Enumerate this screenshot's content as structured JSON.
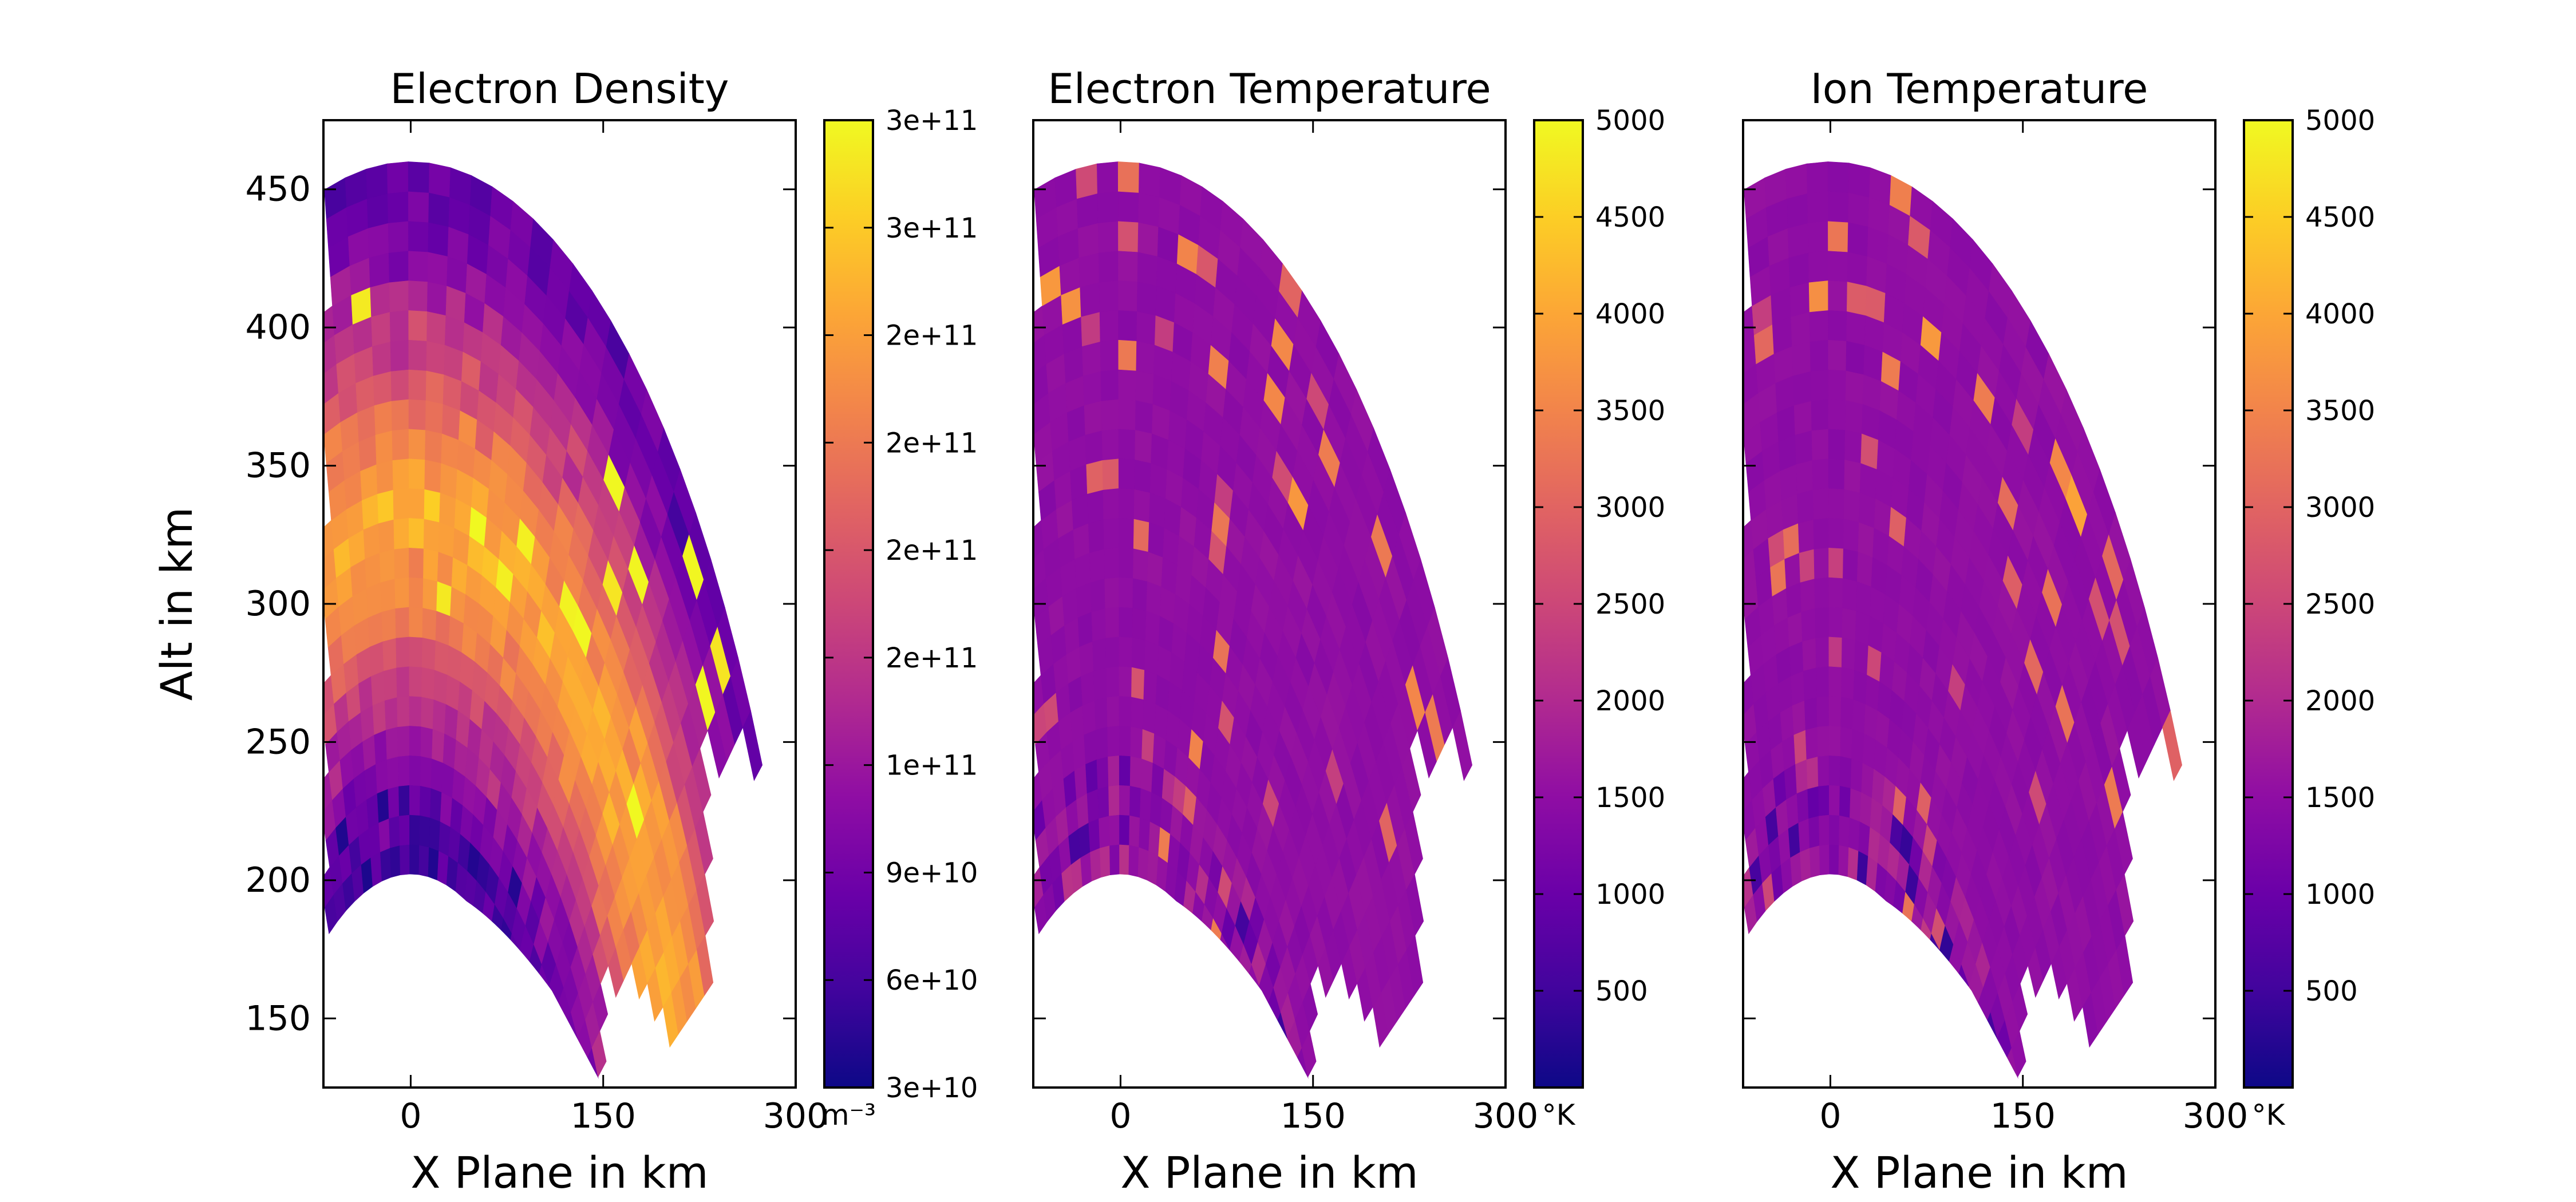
{
  "chart_data": [
    {
      "type": "heatmap",
      "title": "Electron Density",
      "xlabel": "X Plane in km",
      "ylabel": "Alt in km",
      "xlim": [
        -68,
        300
      ],
      "ylim": [
        125,
        475
      ],
      "x_ticks": [
        "0",
        "150",
        "300"
      ],
      "y_ticks": [
        "150",
        "200",
        "250",
        "300",
        "350",
        "400",
        "450"
      ],
      "colormap": "plasma",
      "colorbar": {
        "ticks": [
          "3e+11",
          "3e+11",
          "2e+11",
          "2e+11",
          "2e+11",
          "2e+11",
          "1e+11",
          "9e+10",
          "6e+10",
          "3e+10"
        ],
        "unit": "m⁻³",
        "range": [
          30000000000.0,
          300000000000.0
        ]
      },
      "region": {
        "inner_alt_km": 190,
        "outer_alt_km": 460,
        "lower_left_alt_km": 175,
        "lower_right_alt_km": 258
      },
      "profile": "Low values (~5e10) below ~230 km rising to ~2.5e11 around 300–360 km, decreasing to ~1.5e11 near 450 km, with scattered bright cells near 3e11"
    },
    {
      "type": "heatmap",
      "title": "Electron Temperature",
      "xlabel": "X Plane in km",
      "ylabel": "",
      "xlim": [
        -68,
        300
      ],
      "ylim": [
        125,
        475
      ],
      "x_ticks": [
        "0",
        "150",
        "300"
      ],
      "colormap": "plasma",
      "colorbar": {
        "ticks": [
          "5000",
          "4500",
          "4000",
          "3500",
          "3000",
          "2500",
          "2000",
          "1500",
          "1000",
          "500"
        ],
        "unit": "°K",
        "range": [
          0,
          5000
        ]
      },
      "region": {
        "inner_alt_km": 190,
        "outer_alt_km": 460,
        "lower_left_alt_km": 175,
        "lower_right_alt_km": 258
      },
      "profile": "Mostly ~1500 K throughout, noisier 500–3000 K near the bottom, warmer 2500–4000 K cells near the top"
    },
    {
      "type": "heatmap",
      "title": "Ion Temperature",
      "xlabel": "X Plane in km",
      "ylabel": "",
      "xlim": [
        -68,
        300
      ],
      "ylim": [
        125,
        475
      ],
      "x_ticks": [
        "0",
        "150",
        "300"
      ],
      "colormap": "plasma",
      "colorbar": {
        "ticks": [
          "5000",
          "4500",
          "4000",
          "3500",
          "3000",
          "2500",
          "2000",
          "1500",
          "1000",
          "500"
        ],
        "unit": "°K",
        "range": [
          0,
          5000
        ]
      },
      "region": {
        "inner_alt_km": 190,
        "outer_alt_km": 460,
        "lower_left_alt_km": 175,
        "lower_right_alt_km": 258
      },
      "profile": "Mostly ~1500 K throughout, noisier 500–3000 K near the bottom, warmer 2500–4000 K cells near the top"
    }
  ]
}
